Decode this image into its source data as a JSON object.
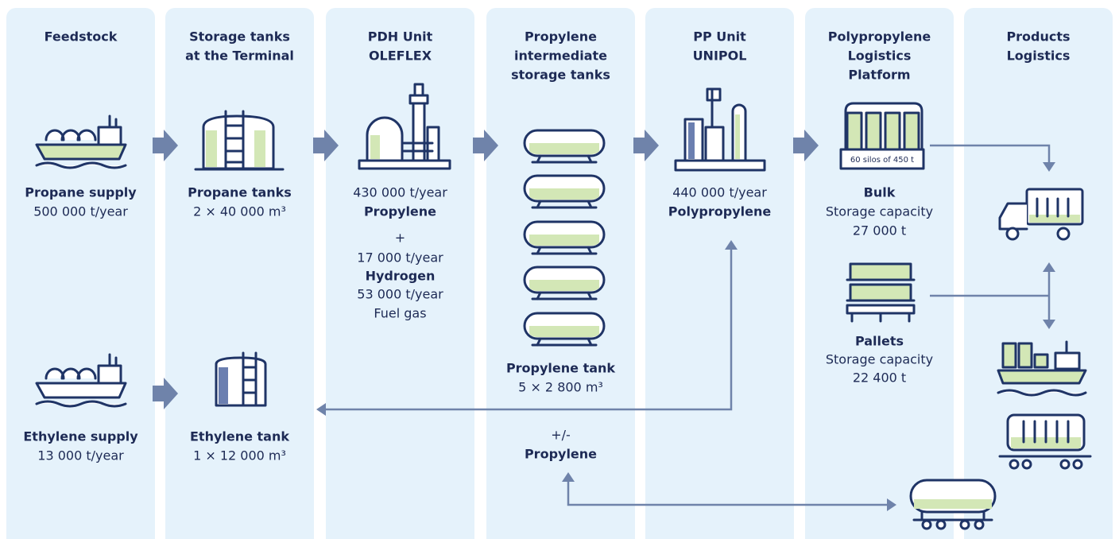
{
  "columns": [
    {
      "title": [
        "Feedstock"
      ],
      "blocks": [
        [
          "Propane supply",
          "500 000 t/year"
        ],
        [
          "Ethylene supply",
          "13 000 t/year"
        ]
      ]
    },
    {
      "title": [
        "Storage tanks",
        "at the Terminal"
      ],
      "blocks": [
        [
          "Propane tanks",
          "2 × 40 000 m³"
        ],
        [
          "Ethylene tank",
          "1 × 12 000 m³"
        ]
      ]
    },
    {
      "title": [
        "PDH Unit",
        "OLEFLEX"
      ],
      "blocks": [
        [
          "430 000 t/year",
          "Propylene",
          "+",
          "17 000 t/year",
          "Hydrogen",
          "53 000 t/year",
          "Fuel gas"
        ]
      ]
    },
    {
      "title": [
        "Propylene",
        "intermediate",
        "storage tanks"
      ],
      "blocks": [
        [
          "Propylene tank",
          "5 × 2 800 m³"
        ],
        [
          "+/-",
          "Propylene"
        ]
      ]
    },
    {
      "title": [
        "PP Unit",
        "UNIPOL"
      ],
      "blocks": [
        [
          "440 000 t/year",
          "Polypropylene"
        ]
      ]
    },
    {
      "title": [
        "Polypropylene",
        "Logistics",
        "Platform"
      ],
      "silo_label": "60 silos of 450 t",
      "blocks": [
        [
          "Bulk",
          "Storage capacity",
          "27 000 t"
        ],
        [
          "Pallets",
          "Storage capacity",
          "22 400 t"
        ]
      ]
    },
    {
      "title": [
        "Products",
        "Logistics"
      ],
      "blocks": []
    }
  ]
}
